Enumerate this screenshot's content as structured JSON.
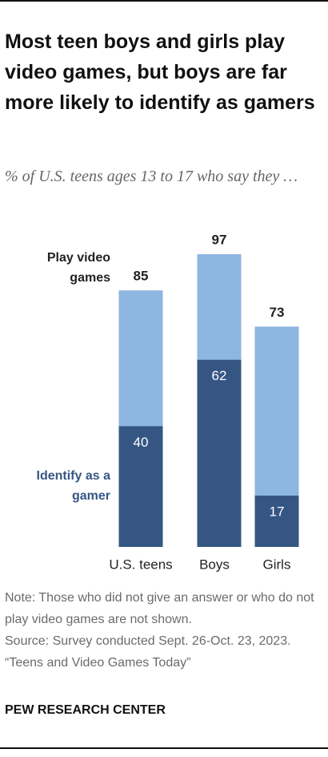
{
  "chart_data": {
    "type": "bar",
    "title": "Most teen boys and girls play video games, but boys are far more likely to identify as gamers",
    "subtitle": "% of U.S. teens ages 13 to 17 who say they …",
    "categories": [
      "U.S. teens",
      "Boys",
      "Girls"
    ],
    "series": [
      {
        "name": "Play video games",
        "color": "#8db6e0",
        "values": [
          85,
          97,
          73
        ]
      },
      {
        "name": "Identify as a gamer",
        "color": "#355683",
        "values": [
          40,
          62,
          17
        ]
      }
    ]
  },
  "notes": [
    "Note: Those who did not give an answer or who do not play video games are not shown.",
    "Source: Survey conducted Sept. 26-Oct. 23, 2023.",
    "“Teens and Video Games Today”"
  ],
  "footer": "PEW RESEARCH CENTER"
}
